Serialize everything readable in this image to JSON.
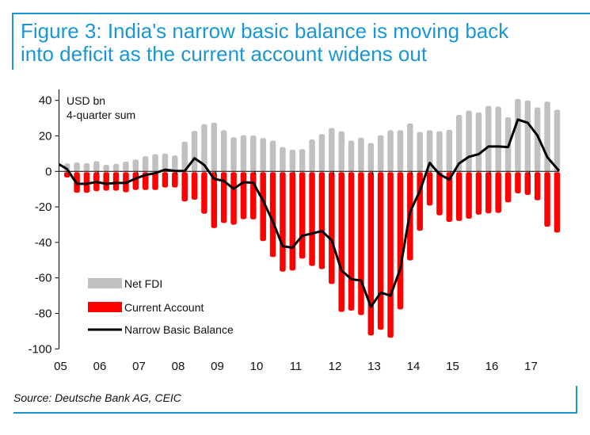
{
  "figure": {
    "title_line1": "Figure 3: India's narrow basic balance is moving back",
    "title_line2": "into deficit as the current account widens out",
    "source": "Source: Deutsche Bank AG, CEIC",
    "accent_color": "#1a96d4"
  },
  "chart_data": {
    "type": "bar",
    "title": "Figure 3: India's narrow basic balance is moving back into deficit as the current account widens out",
    "unit_label_line1": "USD bn",
    "unit_label_line2": "4-quarter sum",
    "xlabel": "",
    "ylabel": "USD bn, 4-quarter sum",
    "ylim": [
      -100,
      40
    ],
    "yticks": [
      40,
      20,
      0,
      -20,
      -40,
      -60,
      -80,
      -100
    ],
    "ytick_labels": [
      "40",
      "20",
      "0",
      "-20",
      "-40",
      "-60",
      "-80",
      "-100"
    ],
    "xtick_labels": [
      "05",
      "06",
      "07",
      "08",
      "09",
      "10",
      "11",
      "12",
      "13",
      "14",
      "15",
      "16",
      "17"
    ],
    "period": "2005Q1-2017Q3 (quarterly)",
    "legend_position": "bottom-left",
    "legend": [
      "Net FDI",
      "Current Account",
      "Narrow Basic Balance"
    ],
    "series": [
      {
        "name": "Net FDI",
        "type": "bar",
        "color": "#c0c0c0",
        "values": [
          4.5,
          5,
          4.6,
          5.7,
          3.7,
          4.2,
          5.5,
          6.7,
          8.5,
          9.7,
          10,
          9,
          16.7,
          22.8,
          26.6,
          27.4,
          23.2,
          19.2,
          20.4,
          20.2,
          18.8,
          17.3,
          13.7,
          12.2,
          12.5,
          18,
          21,
          24.4,
          22.6,
          17.3,
          19,
          16,
          20.4,
          23.2,
          23.2,
          27,
          22.2,
          23.2,
          22.6,
          23.4,
          31.8,
          34.3,
          33.2,
          36.9,
          36.5,
          30.5,
          40.8,
          39.9,
          36,
          39.3,
          34.8
        ]
      },
      {
        "name": "Current Account",
        "type": "bar",
        "color": "#ff0000",
        "values": [
          -3,
          -11.6,
          -11.6,
          -10.7,
          -10.4,
          -10.4,
          -11.3,
          -10,
          -10,
          -10,
          -8.6,
          -8.6,
          -16.5,
          -15.5,
          -23.4,
          -31.5,
          -28.6,
          -29.6,
          -26.5,
          -26.6,
          -38.8,
          -47.8,
          -56,
          -55.4,
          -48.7,
          -52.8,
          -54.6,
          -63,
          -78.7,
          -78,
          -80.5,
          -92,
          -88.8,
          -93.3,
          -77.3,
          -49.7,
          -33,
          -18.8,
          -24.3,
          -28,
          -27.5,
          -26.2,
          -23.9,
          -23.2,
          -22.9,
          -17,
          -11.9,
          -12.8,
          -15.8,
          -30.7,
          -34
        ]
      },
      {
        "name": "Narrow Basic Balance",
        "type": "line",
        "color": "#000000",
        "start_value": 4,
        "values": [
          1.3,
          -7,
          -7,
          -6,
          -7,
          -6.5,
          -6.5,
          -4,
          -2,
          -1,
          1,
          0.3,
          0.2,
          7.4,
          3.6,
          -4.2,
          -5.4,
          -9.8,
          -6.1,
          -6.4,
          -16.5,
          -28.4,
          -42.1,
          -43,
          -36.2,
          -35,
          -33.6,
          -38.8,
          -55.8,
          -60.7,
          -61.5,
          -76.3,
          -68.3,
          -70,
          -55,
          -22.8,
          -11,
          4.8,
          -1.6,
          -4.6,
          4.5,
          8.2,
          9.7,
          14,
          14,
          13.7,
          29.2,
          27.4,
          20.2,
          8,
          0.3
        ]
      }
    ]
  }
}
